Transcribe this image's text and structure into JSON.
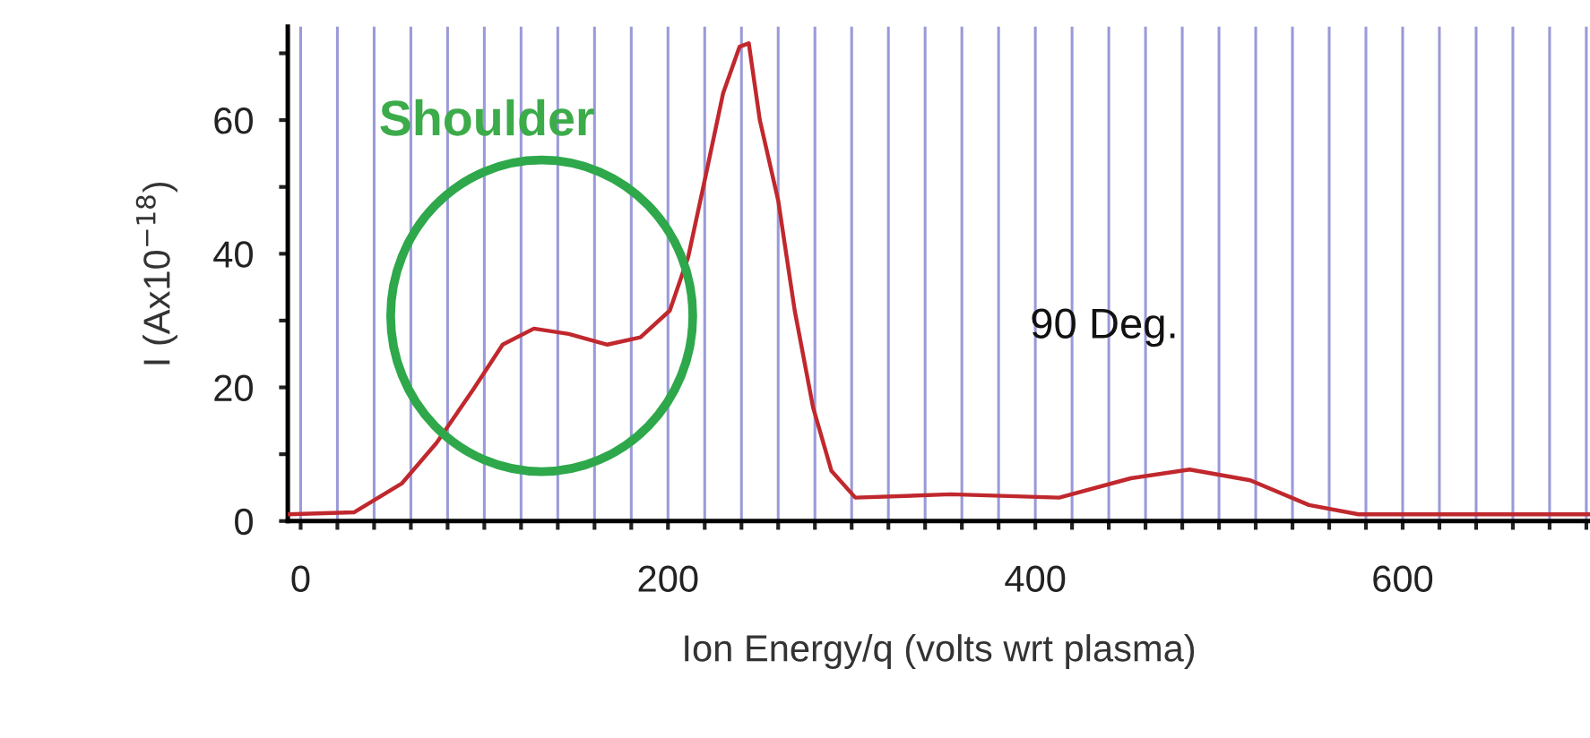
{
  "chart_data": {
    "type": "line",
    "xlabel": "Ion Energy/q (volts wrt plasma)",
    "ylabel": "I (Ax10$^{−18}$)",
    "annotations": [
      "Shoulder",
      "90 Deg."
    ],
    "series": [
      {
        "color": "#c0282d",
        "x": [
          -7,
          29,
          55,
          74,
          94,
          110,
          127,
          146,
          167,
          185,
          201,
          211,
          220,
          230,
          239,
          244,
          250,
          260,
          269,
          279,
          289,
          302,
          354,
          413,
          452,
          484,
          517,
          549,
          576,
          702
        ],
        "values": [
          1,
          1.3,
          5.6,
          11.7,
          19.7,
          26.4,
          28.8,
          28,
          26.4,
          27.5,
          31.5,
          39.5,
          51,
          64,
          71,
          71.5,
          60,
          48,
          31.5,
          17,
          7.5,
          3.5,
          4,
          3.5,
          6.4,
          7.7,
          6.1,
          2.4,
          1,
          1
        ]
      }
    ],
    "xlim": [
      -7,
      702
    ],
    "ylim": [
      0,
      74
    ],
    "xticks": [
      0,
      {
        "value": 20,
        "label": null
      },
      {
        "value": 40,
        "label": null
      },
      {
        "value": 60,
        "label": null
      },
      {
        "value": 80,
        "label": null
      },
      {
        "value": 100,
        "label": null
      },
      {
        "value": 120,
        "label": null
      },
      {
        "value": 140,
        "label": null
      },
      {
        "value": 160,
        "label": null
      },
      {
        "value": 180,
        "label": null
      },
      200,
      {
        "value": 220,
        "label": null
      },
      {
        "value": 240,
        "label": null
      },
      {
        "value": 260,
        "label": null
      },
      {
        "value": 280,
        "label": null
      },
      {
        "value": 300,
        "label": null
      },
      {
        "value": 320,
        "label": null
      },
      {
        "value": 340,
        "label": null
      },
      {
        "value": 360,
        "label": null
      },
      {
        "value": 380,
        "label": null
      },
      400,
      {
        "value": 420,
        "label": null
      },
      {
        "value": 440,
        "label": null
      },
      {
        "value": 460,
        "label": null
      },
      {
        "value": 480,
        "label": null
      },
      {
        "value": 500,
        "label": null
      },
      {
        "value": 520,
        "label": null
      },
      {
        "value": 540,
        "label": null
      },
      {
        "value": 560,
        "label": null
      },
      {
        "value": 580,
        "label": null
      },
      600,
      {
        "value": 620,
        "label": null
      },
      {
        "value": 640,
        "label": null
      },
      {
        "value": 660,
        "label": null
      },
      {
        "value": 680,
        "label": null
      },
      {
        "value": 700,
        "label": null
      }
    ],
    "yticks": [
      0,
      {
        "value": 10,
        "label": null
      },
      20,
      {
        "value": 30,
        "label": null
      },
      40,
      {
        "value": 50,
        "label": null
      },
      60,
      {
        "value": 70,
        "label": null
      }
    ],
    "grid": "x",
    "legend": false,
    "marker": "none",
    "line_style": "solid"
  }
}
